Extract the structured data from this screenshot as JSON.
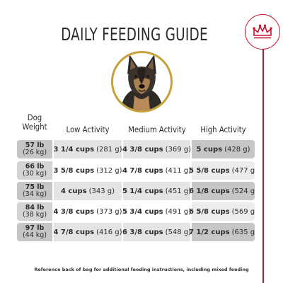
{
  "title": "DAILY FEEDING GUIDE",
  "headers": {
    "weight_line1": "Dog",
    "weight_line2": "Weight",
    "low": "Low Activity",
    "medium": "Medium Activity",
    "high": "High Activity"
  },
  "rows": [
    {
      "lb": "57 lb",
      "kg": "(26 kg)",
      "low_cups": "3 1/4 cups",
      "low_g": "(281 g)",
      "med_cups": "4 3/8 cups",
      "med_g": "(369 g)",
      "high_cups": "5 cups",
      "high_g": "(428 g)"
    },
    {
      "lb": "66 lb",
      "kg": "(30 kg)",
      "low_cups": "3 5/8 cups",
      "low_g": "(312 g)",
      "med_cups": "4 7/8 cups",
      "med_g": "(411 g)",
      "high_cups": "5 5/8 cups",
      "high_g": "(477 g)"
    },
    {
      "lb": "75 lb",
      "kg": "(34 kg)",
      "low_cups": "4 cups",
      "low_g": "(343 g)",
      "med_cups": "5 1/4 cups",
      "med_g": "(451 g)",
      "high_cups": "6 1/8 cups",
      "high_g": "(524 g)"
    },
    {
      "lb": "84 lb",
      "kg": "(38 kg)",
      "low_cups": "4 3/8 cups",
      "low_g": "(373 g)",
      "med_cups": "5 3/4 cups",
      "med_g": "(491 g)",
      "high_cups": "6 5/8 cups",
      "high_g": "(569 g)"
    },
    {
      "lb": "97 lb",
      "kg": "(44 kg)",
      "low_cups": "4 7/8 cups",
      "low_g": "(416 g)",
      "med_cups": "6 3/8 cups",
      "med_g": "(548 g)",
      "high_cups": "7 1/2 cups",
      "high_g": "(635 g)"
    }
  ],
  "footnote": "Reference back of bag for additional feeding instructions, including mixed feeding",
  "colors": {
    "accent": "#c8102e",
    "gold": "#c5a13a"
  },
  "icons": {
    "logo": "crown-icon",
    "photo": "german-shepherd-photo"
  }
}
